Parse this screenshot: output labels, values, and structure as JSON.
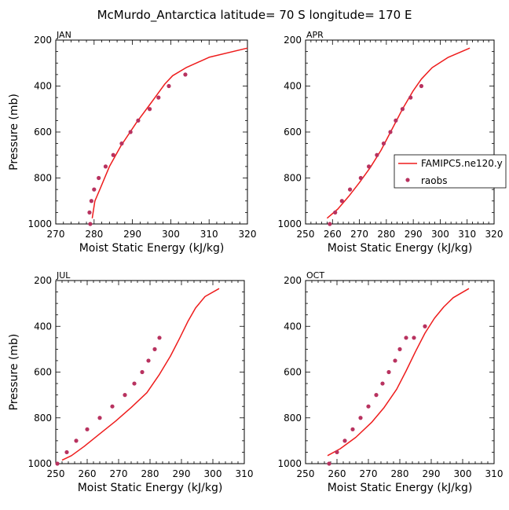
{
  "figure": {
    "title": "McMurdo_Antarctica  latitude= 70 S longitude= 170 E",
    "legend": [
      "FAMIPC5.ne120.y",
      "raobs"
    ],
    "colors": {
      "model": "#ee1c1c",
      "raobs": "#b8325f"
    }
  },
  "chart_data": [
    {
      "type": "line",
      "panel": "JAN",
      "xlabel": "Moist Static Energy (kJ/kg)",
      "ylabel": "Pressure (mb)",
      "xlim": [
        270,
        320
      ],
      "ylim": [
        1000,
        200
      ],
      "xticks": [
        270,
        280,
        290,
        300,
        310,
        320
      ],
      "yticks": [
        200,
        400,
        600,
        800,
        1000
      ],
      "series": [
        {
          "name": "FAMIPC5.ne120.y",
          "style": "line",
          "x": [
            279.5,
            280.2,
            281.5,
            284.0,
            287.0,
            291.0,
            295.0,
            298.5,
            300.5,
            304.0,
            310.0,
            320.0
          ],
          "y": [
            975,
            900,
            850,
            750,
            660,
            560,
            470,
            390,
            355,
            320,
            275,
            235
          ]
        },
        {
          "name": "raobs",
          "style": "markers",
          "x": [
            279.0,
            278.8,
            279.3,
            280.0,
            281.2,
            283.0,
            285.0,
            287.2,
            289.5,
            291.5,
            294.5,
            296.8,
            299.5,
            303.8
          ],
          "y": [
            1000,
            950,
            900,
            850,
            800,
            750,
            700,
            650,
            600,
            550,
            500,
            450,
            400,
            350
          ]
        }
      ]
    },
    {
      "type": "line",
      "panel": "APR",
      "xlabel": "Moist Static Energy (kJ/kg)",
      "ylabel": "",
      "xlim": [
        250,
        320
      ],
      "ylim": [
        1000,
        200
      ],
      "xticks": [
        250,
        260,
        270,
        280,
        290,
        300,
        310,
        320
      ],
      "yticks": [
        200,
        400,
        600,
        800,
        1000
      ],
      "series": [
        {
          "name": "FAMIPC5.ne120.y",
          "style": "line",
          "x": [
            258.0,
            262.0,
            266.0,
            270.0,
            274.0,
            278.0,
            282.0,
            286.0,
            290.0,
            293.0,
            297.0,
            303.0,
            311.0
          ],
          "y": [
            975,
            935,
            880,
            820,
            755,
            680,
            590,
            500,
            420,
            370,
            320,
            275,
            235
          ]
        },
        {
          "name": "raobs",
          "style": "markers",
          "x": [
            259.0,
            261.0,
            263.5,
            266.5,
            270.5,
            273.5,
            276.5,
            279.0,
            281.5,
            283.5,
            286.0,
            289.0,
            293.0
          ],
          "y": [
            1000,
            950,
            900,
            850,
            800,
            750,
            700,
            650,
            600,
            550,
            500,
            450,
            400
          ]
        }
      ]
    },
    {
      "type": "line",
      "panel": "JUL",
      "xlabel": "Moist Static Energy (kJ/kg)",
      "ylabel": "Pressure (mb)",
      "xlim": [
        250,
        310
      ],
      "ylim": [
        1000,
        200
      ],
      "xticks": [
        250,
        260,
        270,
        280,
        290,
        300,
        310
      ],
      "yticks": [
        200,
        400,
        600,
        800,
        1000
      ],
      "series": [
        {
          "name": "FAMIPC5.ne120.y",
          "style": "line",
          "x": [
            252.0,
            255.0,
            259.0,
            264.0,
            269.0,
            274.0,
            279.0,
            283.0,
            286.5,
            289.5,
            292.0,
            294.5,
            297.5,
            302.0
          ],
          "y": [
            985,
            965,
            925,
            870,
            815,
            755,
            690,
            610,
            530,
            450,
            380,
            320,
            270,
            235
          ]
        },
        {
          "name": "raobs",
          "style": "markers",
          "x": [
            250.5,
            253.5,
            256.5,
            260.0,
            264.0,
            268.0,
            272.0,
            275.0,
            277.5,
            279.5,
            281.5,
            283.0
          ],
          "y": [
            1000,
            950,
            900,
            850,
            800,
            750,
            700,
            650,
            600,
            550,
            500,
            450
          ]
        }
      ]
    },
    {
      "type": "line",
      "panel": "OCT",
      "xlabel": "Moist Static Energy (kJ/kg)",
      "ylabel": "",
      "xlim": [
        250,
        310
      ],
      "ylim": [
        1000,
        200
      ],
      "xticks": [
        250,
        260,
        270,
        280,
        290,
        300,
        310
      ],
      "yticks": [
        200,
        400,
        600,
        800,
        1000
      ],
      "series": [
        {
          "name": "FAMIPC5.ne120.y",
          "style": "line",
          "x": [
            257.0,
            261.0,
            266.0,
            271.0,
            275.0,
            279.0,
            282.0,
            285.0,
            288.0,
            291.0,
            294.0,
            297.0,
            302.0
          ],
          "y": [
            965,
            935,
            885,
            820,
            755,
            675,
            595,
            510,
            430,
            365,
            315,
            275,
            235
          ]
        },
        {
          "name": "raobs",
          "style": "markers",
          "x": [
            257.5,
            260.0,
            262.5,
            265.0,
            267.5,
            270.0,
            272.5,
            274.5,
            276.5,
            278.5,
            280.0,
            282.0,
            284.5,
            288.0
          ],
          "y": [
            1000,
            950,
            900,
            850,
            800,
            750,
            700,
            650,
            600,
            550,
            500,
            450,
            450,
            400
          ]
        }
      ]
    }
  ]
}
